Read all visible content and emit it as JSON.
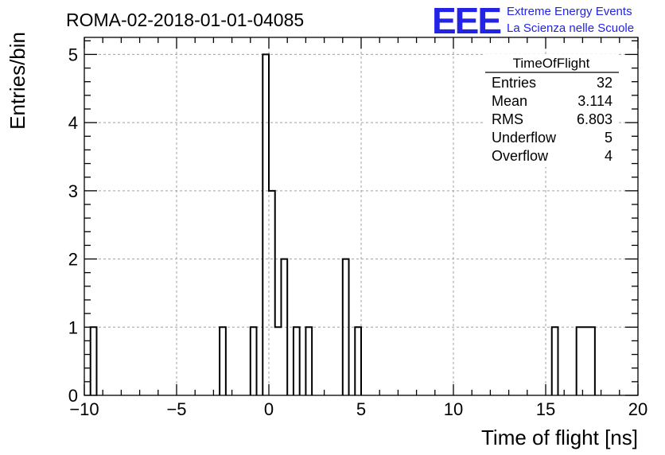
{
  "header": {
    "run_title": "ROMA-02-2018-01-01-04085",
    "logo_text": "EEE",
    "logo_line1": "Extreme Energy Events",
    "logo_line2": "La Scienza nelle Scuole",
    "logo_color": "#2323e6"
  },
  "stats_box": {
    "title": "TimeOfFlight",
    "rows": [
      {
        "label": "Entries",
        "value": "32"
      },
      {
        "label": "Mean",
        "value": "3.114"
      },
      {
        "label": "RMS",
        "value": "6.803"
      },
      {
        "label": "Underflow",
        "value": "5"
      },
      {
        "label": "Overflow",
        "value": "4"
      }
    ]
  },
  "chart_data": {
    "type": "bar",
    "histogram": true,
    "title": "ROMA-02-2018-01-01-04085",
    "xlabel": "Time of flight [ns]",
    "ylabel": "Entries/bin",
    "xlim": [
      -10,
      20
    ],
    "ylim": [
      0,
      5.25
    ],
    "xticks": [
      -10,
      -5,
      0,
      5,
      10,
      15,
      20
    ],
    "yticks": [
      0,
      1,
      2,
      3,
      4,
      5
    ],
    "grid": true,
    "line_color": "#000000",
    "bin_width": 0.3333,
    "bins": [
      {
        "x0": -9.667,
        "x1": -9.333,
        "value": 1
      },
      {
        "x0": -2.667,
        "x1": -2.333,
        "value": 1
      },
      {
        "x0": -1.0,
        "x1": -0.667,
        "value": 1
      },
      {
        "x0": -0.333,
        "x1": 0.0,
        "value": 5
      },
      {
        "x0": 0.0,
        "x1": 0.333,
        "value": 3
      },
      {
        "x0": 0.333,
        "x1": 0.667,
        "value": 1
      },
      {
        "x0": 0.667,
        "x1": 1.0,
        "value": 2
      },
      {
        "x0": 1.333,
        "x1": 1.667,
        "value": 1
      },
      {
        "x0": 2.0,
        "x1": 2.333,
        "value": 1
      },
      {
        "x0": 4.0,
        "x1": 4.333,
        "value": 2
      },
      {
        "x0": 4.667,
        "x1": 5.0,
        "value": 1
      },
      {
        "x0": 15.333,
        "x1": 15.667,
        "value": 1
      },
      {
        "x0": 16.667,
        "x1": 17.0,
        "value": 1
      },
      {
        "x0": 17.0,
        "x1": 17.333,
        "value": 1
      },
      {
        "x0": 17.333,
        "x1": 17.667,
        "value": 1
      }
    ]
  }
}
